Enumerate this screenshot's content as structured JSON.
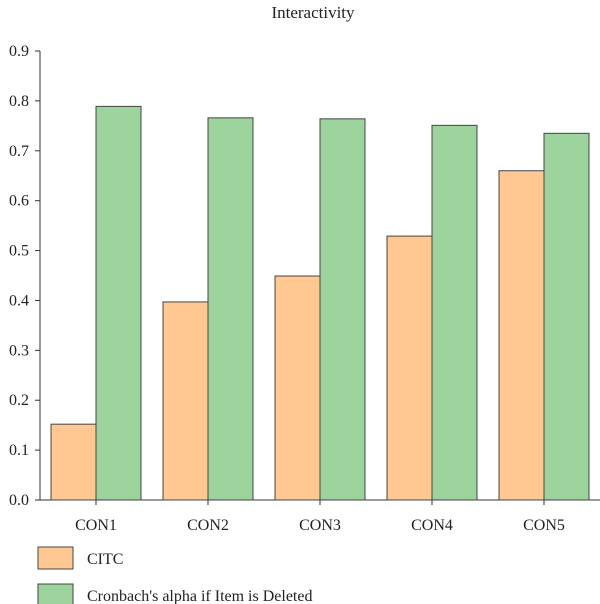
{
  "chart_data": {
    "type": "bar",
    "title": "Interactivity",
    "xlabel": "",
    "ylabel": "",
    "categories": [
      "CON1",
      "CON2",
      "CON3",
      "CON4",
      "CON5"
    ],
    "series": [
      {
        "name": "CITC",
        "values": [
          0.152,
          0.397,
          0.449,
          0.529,
          0.66
        ],
        "color": "#FFC893"
      },
      {
        "name": "Cronbach's alpha if Item is Deleted",
        "values": [
          0.789,
          0.766,
          0.764,
          0.751,
          0.735
        ],
        "color": "#9DD39C"
      }
    ],
    "ylim": [
      0,
      0.9
    ],
    "yticks": [
      "0.0",
      "0.1",
      "0.2",
      "0.3",
      "0.4",
      "0.5",
      "0.6",
      "0.7",
      "0.8",
      "0.9"
    ],
    "grid": false,
    "legend_position": "bottom-left"
  }
}
